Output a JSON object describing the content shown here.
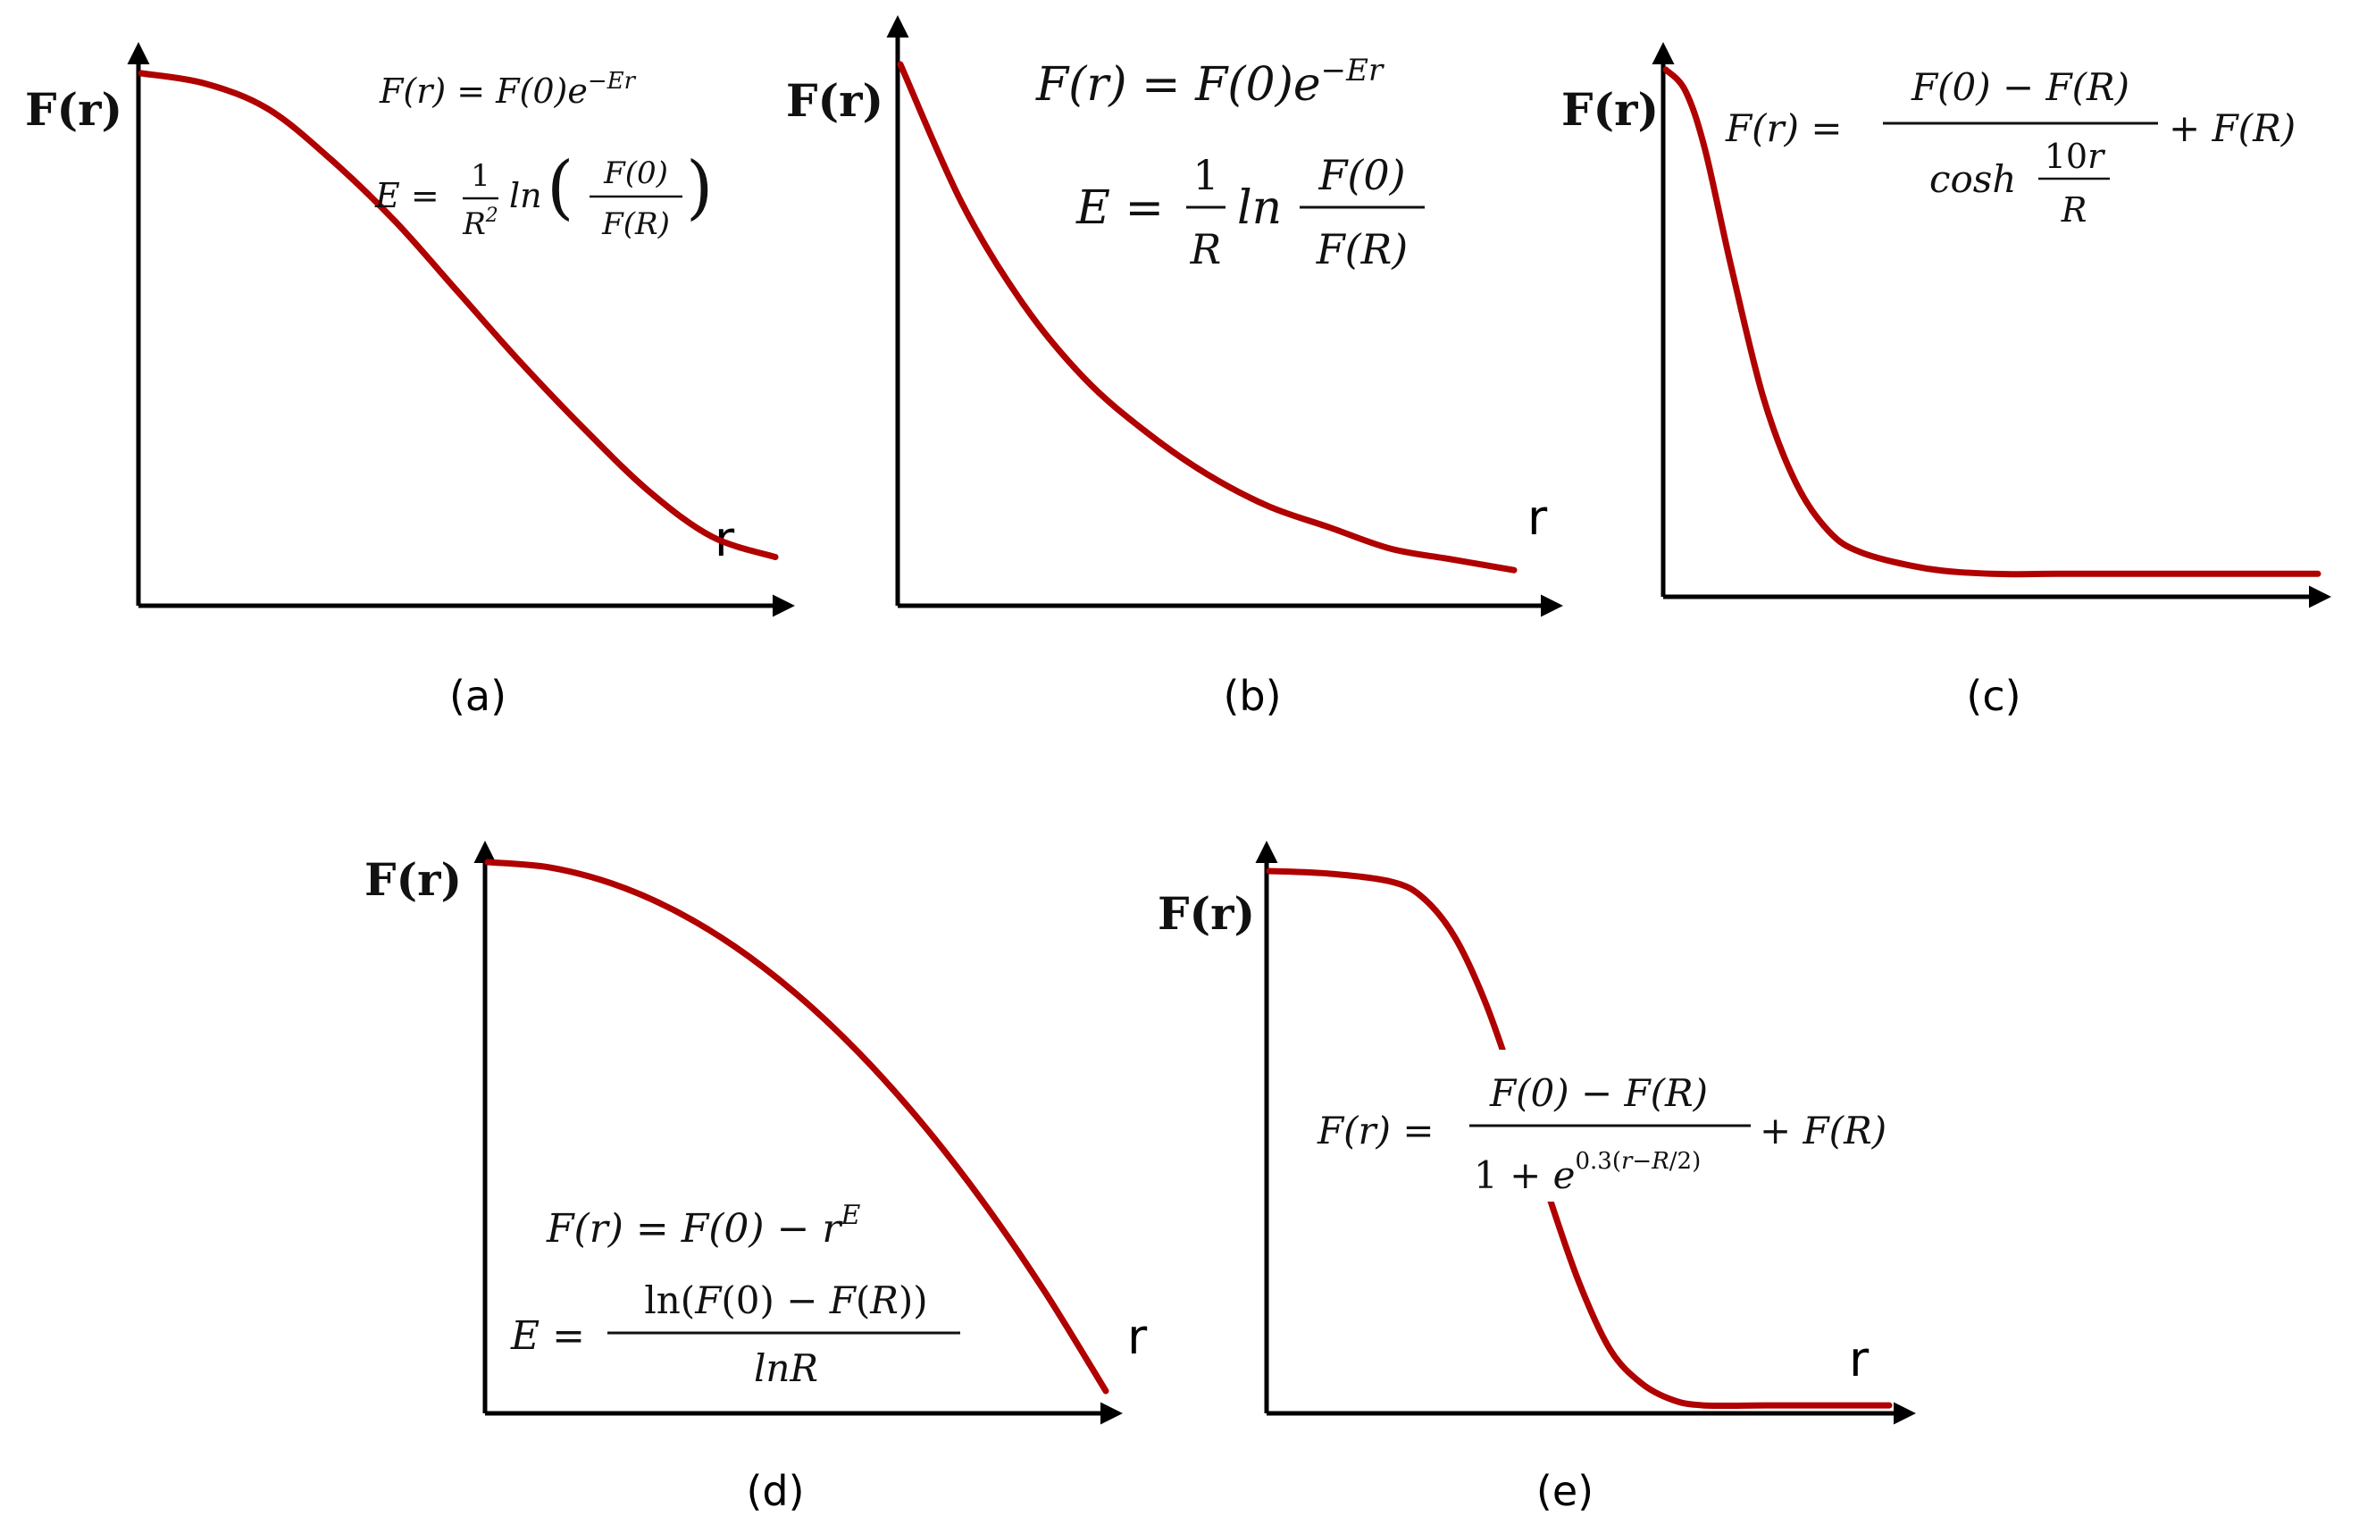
{
  "colors": {
    "curve": "#b00000",
    "axis": "#000000"
  },
  "chart_data": [
    {
      "type": "line",
      "caption": "(a)",
      "ylabel": "F(r)",
      "xlabel": "r",
      "equations": [
        "F(r) = F(0)e^{−Er}",
        "E = 1/R² ln(F(0)/F(R))"
      ],
      "series": [
        {
          "x": [
            0,
            0.1,
            0.2,
            0.3,
            0.4,
            0.5,
            0.6,
            0.7,
            0.8,
            0.9,
            1.0
          ],
          "y": [
            1.0,
            0.98,
            0.93,
            0.83,
            0.71,
            0.57,
            0.43,
            0.3,
            0.18,
            0.09,
            0.05
          ]
        }
      ]
    },
    {
      "type": "line",
      "caption": "(b)",
      "ylabel": "F(r)",
      "xlabel": "r",
      "equations": [
        "F(r) = F(0)e^{−Er}",
        "E = 1/R ln F(0)/F(R)"
      ],
      "series": [
        {
          "x": [
            0,
            0.1,
            0.2,
            0.3,
            0.4,
            0.5,
            0.6,
            0.7,
            0.8,
            0.9,
            1.0
          ],
          "y": [
            1.0,
            0.74,
            0.55,
            0.41,
            0.31,
            0.23,
            0.17,
            0.13,
            0.09,
            0.07,
            0.05
          ]
        }
      ]
    },
    {
      "type": "line",
      "caption": "(c)",
      "ylabel": "F(r)",
      "xlabel": "",
      "equations": [
        "F(r) = (F(0) − F(R)) / cosh(10r/R) + F(R)"
      ],
      "series": [
        {
          "x": [
            0,
            0.03,
            0.06,
            0.1,
            0.15,
            0.2,
            0.25,
            0.3,
            0.4,
            0.5,
            0.6,
            0.8,
            1.0
          ],
          "y": [
            1.0,
            0.96,
            0.85,
            0.63,
            0.38,
            0.22,
            0.13,
            0.09,
            0.06,
            0.05,
            0.05,
            0.05,
            0.05
          ]
        }
      ]
    },
    {
      "type": "line",
      "caption": "(d)",
      "ylabel": "F(r)",
      "xlabel": "r",
      "equations": [
        "F(r) = F(0) − r^E",
        "E = ln(F(0) − F(R)) / lnR"
      ],
      "series": [
        {
          "x": [
            0,
            0.1,
            0.2,
            0.3,
            0.4,
            0.5,
            0.6,
            0.7,
            0.8,
            0.9,
            1.0
          ],
          "y": [
            1.0,
            0.99,
            0.96,
            0.91,
            0.84,
            0.75,
            0.64,
            0.51,
            0.36,
            0.19,
            0.0
          ]
        }
      ]
    },
    {
      "type": "line",
      "caption": "(e)",
      "ylabel": "F(r)",
      "xlabel": "r",
      "equations": [
        "F(r) = (F(0) − F(R)) / (1 + e^{0.3(r − R/2)}) + F(R)"
      ],
      "series": [
        {
          "x": [
            0,
            0.1,
            0.2,
            0.25,
            0.3,
            0.35,
            0.4,
            0.45,
            0.5,
            0.55,
            0.6,
            0.65,
            0.7,
            0.8,
            0.9,
            1.0
          ],
          "y": [
            1.0,
            0.995,
            0.98,
            0.95,
            0.88,
            0.76,
            0.6,
            0.42,
            0.26,
            0.14,
            0.08,
            0.05,
            0.04,
            0.04,
            0.04,
            0.04
          ]
        }
      ]
    }
  ]
}
